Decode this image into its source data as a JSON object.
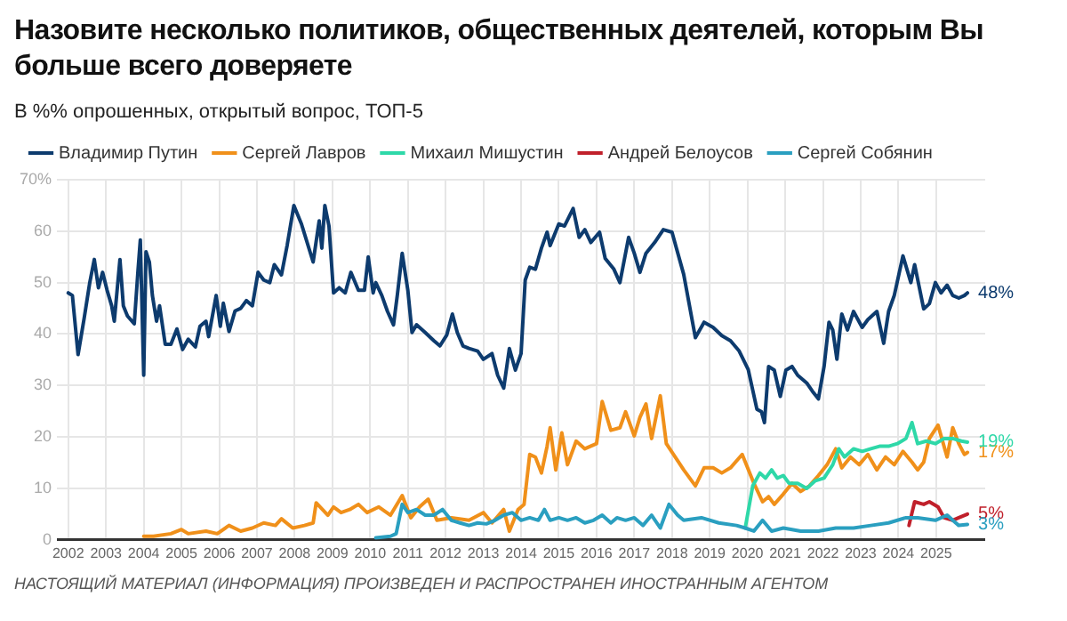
{
  "chart_data": {
    "type": "line",
    "title": "Назовите несколько политиков, общественных деятелей, которым Вы больше всего доверяете",
    "subtitle": "В %% опрошенных, открытый вопрос, ТОП-5",
    "annotations": [
      "НАСТОЯЩИЙ МАТЕРИАЛ (ИНФОРМАЦИЯ) ПРОИЗВЕДЕН И РАСПРОСТРАНЕН ИНОСТРАННЫМ АГЕНТОМ"
    ],
    "legend": "top left",
    "grid": true,
    "marker": "none",
    "line_style": "solid",
    "xlim": [
      2001.7,
      2026.3
    ],
    "xticks": [
      2002,
      2003,
      2004,
      2005,
      2006,
      2007,
      2008,
      2009,
      2010,
      2011,
      2012,
      2013,
      2014,
      2015,
      2016,
      2017,
      2018,
      2019,
      2020,
      2021,
      2022,
      2023,
      2024,
      2025
    ],
    "ylim": [
      0,
      70
    ],
    "yticks": [
      0,
      10,
      20,
      30,
      40,
      50,
      60,
      {
        "value": 70,
        "label": "70%"
      }
    ],
    "series": [
      {
        "name": "Владимир Путин",
        "color": "#0d3b6e",
        "x": [
          2002.0,
          2002.11,
          2002.26,
          2002.42,
          2002.57,
          2002.69,
          2002.8,
          2002.91,
          2003.03,
          2003.15,
          2003.22,
          2003.37,
          2003.46,
          2003.57,
          2003.75,
          2003.85,
          2003.91,
          2004.0,
          2004.06,
          2004.15,
          2004.23,
          2004.34,
          2004.42,
          2004.57,
          2004.72,
          2004.88,
          2005.03,
          2005.18,
          2005.37,
          2005.49,
          2005.65,
          2005.72,
          2005.92,
          2006.03,
          2006.11,
          2006.26,
          2006.42,
          2006.57,
          2006.72,
          2006.88,
          2007.03,
          2007.18,
          2007.34,
          2007.46,
          2007.65,
          2007.8,
          2007.98,
          2008.18,
          2008.49,
          2008.65,
          2008.72,
          2008.8,
          2008.91,
          2009.03,
          2009.18,
          2009.34,
          2009.49,
          2009.69,
          2009.85,
          2009.95,
          2010.08,
          2010.15,
          2010.31,
          2010.46,
          2010.62,
          2010.72,
          2010.85,
          2011.0,
          2011.11,
          2011.23,
          2011.46,
          2011.69,
          2011.85,
          2012.03,
          2012.18,
          2012.31,
          2012.46,
          2012.62,
          2012.85,
          2013.0,
          2013.23,
          2013.38,
          2013.54,
          2013.69,
          2013.85,
          2014.0,
          2014.11,
          2014.23,
          2014.38,
          2014.54,
          2014.69,
          2014.77,
          2015.0,
          2015.15,
          2015.38,
          2015.54,
          2015.69,
          2015.85,
          2016.08,
          2016.23,
          2016.46,
          2016.62,
          2016.85,
          2017.0,
          2017.15,
          2017.31,
          2017.54,
          2017.77,
          2018.0,
          2018.31,
          2018.62,
          2018.85,
          2019.09,
          2019.32,
          2019.55,
          2019.78,
          2020.02,
          2020.25,
          2020.37,
          2020.45,
          2020.56,
          2020.71,
          2020.87,
          2021.02,
          2021.18,
          2021.33,
          2021.57,
          2021.72,
          2021.88,
          2022.03,
          2022.16,
          2022.26,
          2022.37,
          2022.5,
          2022.65,
          2022.81,
          2023.04,
          2023.19,
          2023.43,
          2023.61,
          2023.74,
          2023.89,
          2024.12,
          2024.33,
          2024.43,
          2024.67,
          2024.82,
          2024.98,
          2025.13,
          2025.29,
          2025.44,
          2025.6,
          2025.75,
          2025.83
        ],
        "values": [
          48,
          47.5,
          36,
          43,
          50,
          54.5,
          49,
          52,
          48.5,
          45.5,
          42.5,
          54.5,
          45.5,
          43.5,
          42,
          52.5,
          58.3,
          32,
          56,
          54,
          47.5,
          42.5,
          45.5,
          38,
          38,
          41,
          37,
          39,
          37.5,
          41.5,
          42.5,
          39.5,
          47.5,
          41.5,
          46,
          40.5,
          44.5,
          45,
          46.5,
          45.5,
          52,
          50.5,
          50,
          53.5,
          51.5,
          57.2,
          65,
          61.4,
          54,
          62,
          56.7,
          65,
          61,
          48,
          49,
          48,
          52,
          48.5,
          48.5,
          55,
          48,
          50,
          47.5,
          44.4,
          41.8,
          47.5,
          55.7,
          48.5,
          40.3,
          41.8,
          40.3,
          38.7,
          37.7,
          39.8,
          43.9,
          40.3,
          37.7,
          37.2,
          36.7,
          35.1,
          36.2,
          32,
          29.5,
          37.2,
          33,
          36.2,
          50.5,
          53,
          52.6,
          56.7,
          59.8,
          57.2,
          61.4,
          61,
          64.4,
          58.8,
          60.3,
          57.8,
          59.8,
          54.7,
          52.6,
          50,
          58.8,
          55.7,
          52,
          55.7,
          57.8,
          60.3,
          59.8,
          51.6,
          39.3,
          42.3,
          41.3,
          39.7,
          38.7,
          36.7,
          33.1,
          25.4,
          24.9,
          22.8,
          33.7,
          33,
          27.9,
          33,
          33.7,
          32,
          30.5,
          28.9,
          27.4,
          33.7,
          42.3,
          40.8,
          35.1,
          43.9,
          40.8,
          44.4,
          41.3,
          42.8,
          44.4,
          38.2,
          44.4,
          47.5,
          55.2,
          50,
          53.5,
          44.9,
          45.9,
          50,
          48,
          49.5,
          47.5,
          47,
          47.5,
          48
        ],
        "value_labels": [
          null,
          null,
          null,
          null,
          null,
          null,
          null,
          null,
          null,
          null,
          null,
          null,
          null,
          null,
          null,
          null,
          null,
          null,
          null,
          null,
          null,
          null,
          null,
          null,
          null,
          null,
          null,
          null,
          null,
          null,
          null,
          null,
          null,
          null,
          null,
          null,
          null,
          null,
          null,
          null,
          null,
          null,
          null,
          null,
          null,
          null,
          null,
          null,
          null,
          null,
          null,
          null,
          null,
          null,
          null,
          null,
          null,
          null,
          null,
          null,
          null,
          null,
          null,
          null,
          null,
          null,
          null,
          null,
          null,
          null,
          null,
          null,
          null,
          null,
          null,
          null,
          null,
          null,
          null,
          null,
          null,
          null,
          null,
          null,
          null,
          null,
          null,
          null,
          null,
          null,
          null,
          null,
          null,
          null,
          null,
          null,
          null,
          null,
          null,
          null,
          null,
          null,
          null,
          null,
          null,
          null,
          null,
          null,
          null,
          null,
          null,
          null,
          null,
          null,
          null,
          null,
          null,
          null,
          null,
          null,
          null,
          null,
          null,
          null,
          null,
          null,
          null,
          null,
          null,
          null,
          null,
          null,
          null,
          null,
          null,
          null,
          null,
          null,
          null,
          null,
          null,
          null,
          null,
          null,
          null,
          null,
          null,
          null,
          null,
          null,
          null,
          null,
          null,
          "48%"
        ]
      },
      {
        "name": "Сергей Лавров",
        "color": "#f0901a",
        "x": [
          2004.0,
          2004.26,
          2004.72,
          2005.0,
          2005.18,
          2005.65,
          2005.95,
          2006.26,
          2006.57,
          2006.88,
          2007.18,
          2007.49,
          2007.65,
          2007.95,
          2008.26,
          2008.49,
          2008.57,
          2008.88,
          2009.03,
          2009.23,
          2009.46,
          2009.69,
          2009.92,
          2010.23,
          2010.54,
          2010.85,
          2011.08,
          2011.31,
          2011.54,
          2011.77,
          2012.15,
          2012.62,
          2013.0,
          2013.23,
          2013.54,
          2013.69,
          2013.92,
          2014.08,
          2014.23,
          2014.38,
          2014.54,
          2014.69,
          2014.77,
          2014.92,
          2015.08,
          2015.23,
          2015.46,
          2015.69,
          2016.0,
          2016.15,
          2016.38,
          2016.62,
          2016.77,
          2017.0,
          2017.15,
          2017.31,
          2017.46,
          2017.69,
          2017.85,
          2018.31,
          2018.62,
          2018.85,
          2019.09,
          2019.32,
          2019.55,
          2019.86,
          2020.17,
          2020.4,
          2020.56,
          2020.71,
          2020.95,
          2021.18,
          2021.41,
          2021.64,
          2021.88,
          2022.11,
          2022.34,
          2022.5,
          2022.73,
          2022.96,
          2023.19,
          2023.43,
          2023.66,
          2023.89,
          2024.12,
          2024.36,
          2024.51,
          2024.67,
          2024.82,
          2025.05,
          2025.29,
          2025.44,
          2025.6,
          2025.75,
          2025.83
        ],
        "values": [
          0.7,
          0.7,
          1.2,
          2,
          1.2,
          1.7,
          1.2,
          2.8,
          1.7,
          2.3,
          3.3,
          2.8,
          4.1,
          2.3,
          2.8,
          3.3,
          7.2,
          4.8,
          6.4,
          5.3,
          5.9,
          6.9,
          5.3,
          6.4,
          4.8,
          8.6,
          4.3,
          6.4,
          7.9,
          3.8,
          4.3,
          3.8,
          5.3,
          3.3,
          5.9,
          1.7,
          5.9,
          6.9,
          16.6,
          16.1,
          13,
          18.2,
          21.8,
          13.6,
          20.8,
          14.6,
          19.2,
          17.7,
          18.7,
          26.9,
          21.3,
          21.8,
          24.9,
          20.2,
          23.8,
          26.4,
          19.7,
          28,
          18.7,
          13.6,
          10.5,
          14,
          14,
          13,
          14,
          16.6,
          11,
          7.4,
          8.4,
          6.9,
          8.9,
          11,
          9.4,
          10.5,
          12.5,
          14.6,
          17.7,
          14,
          16.1,
          14.6,
          16.6,
          13.6,
          16.1,
          14.6,
          17.2,
          15.1,
          13.6,
          15.1,
          19.7,
          22.3,
          16.1,
          21.8,
          18.7,
          16.6,
          17
        ],
        "value_labels": [
          null,
          null,
          null,
          null,
          null,
          null,
          null,
          null,
          null,
          null,
          null,
          null,
          null,
          null,
          null,
          null,
          null,
          null,
          null,
          null,
          null,
          null,
          null,
          null,
          null,
          null,
          null,
          null,
          null,
          null,
          null,
          null,
          null,
          null,
          null,
          null,
          null,
          null,
          null,
          null,
          null,
          null,
          null,
          null,
          null,
          null,
          null,
          null,
          null,
          null,
          null,
          null,
          null,
          null,
          null,
          null,
          null,
          null,
          null,
          null,
          null,
          null,
          null,
          null,
          null,
          null,
          null,
          null,
          null,
          null,
          null,
          null,
          null,
          null,
          null,
          null,
          null,
          null,
          null,
          null,
          null,
          null,
          null,
          null,
          null,
          null,
          null,
          null,
          null,
          null,
          null,
          null,
          null,
          null,
          "17%"
        ]
      },
      {
        "name": "Михаил Мишустин",
        "color": "#2ed8a8",
        "x": [
          2019.94,
          2020.14,
          2020.33,
          2020.48,
          2020.64,
          2020.79,
          2020.95,
          2021.1,
          2021.33,
          2021.57,
          2021.8,
          2022.03,
          2022.26,
          2022.42,
          2022.57,
          2022.81,
          2023.04,
          2023.27,
          2023.5,
          2023.74,
          2023.97,
          2024.2,
          2024.36,
          2024.51,
          2024.74,
          2024.98,
          2025.21,
          2025.44,
          2025.67,
          2025.83
        ],
        "values": [
          2.3,
          10.5,
          13,
          12,
          13.6,
          12,
          12.5,
          11,
          11,
          10,
          11.5,
          12,
          14.6,
          17.7,
          16.1,
          17.7,
          17.2,
          17.7,
          18.2,
          18.2,
          18.7,
          19.7,
          22.8,
          18.7,
          19.2,
          18.7,
          19.7,
          19.7,
          19.2,
          19
        ],
        "value_labels": [
          null,
          null,
          null,
          null,
          null,
          null,
          null,
          null,
          null,
          null,
          null,
          null,
          null,
          null,
          null,
          null,
          null,
          null,
          null,
          null,
          null,
          null,
          null,
          null,
          null,
          null,
          null,
          null,
          null,
          "19%"
        ]
      },
      {
        "name": "Андрей Белоусов",
        "color": "#c0202b",
        "x": [
          2024.28,
          2024.43,
          2024.67,
          2024.82,
          2025.05,
          2025.21,
          2025.44,
          2025.6,
          2025.83
        ],
        "values": [
          2.8,
          7.4,
          6.9,
          7.4,
          6.4,
          4.3,
          3.8,
          4.3,
          5
        ],
        "value_labels": [
          null,
          null,
          null,
          null,
          null,
          null,
          null,
          null,
          "5%"
        ]
      },
      {
        "name": "Сергей Собянин",
        "color": "#2a9fc0",
        "x": [
          2010.15,
          2010.54,
          2010.69,
          2010.85,
          2011.0,
          2011.23,
          2011.46,
          2011.69,
          2011.92,
          2012.15,
          2012.38,
          2012.62,
          2012.85,
          2013.08,
          2013.31,
          2013.54,
          2013.77,
          2014.0,
          2014.23,
          2014.46,
          2014.62,
          2014.77,
          2015.0,
          2015.23,
          2015.46,
          2015.69,
          2015.92,
          2016.15,
          2016.38,
          2016.54,
          2016.77,
          2017.0,
          2017.23,
          2017.46,
          2017.69,
          2017.92,
          2018.15,
          2018.31,
          2018.78,
          2019.24,
          2019.71,
          2019.94,
          2020.17,
          2020.4,
          2020.64,
          2020.95,
          2021.41,
          2021.88,
          2022.34,
          2022.81,
          2023.27,
          2023.74,
          2024.2,
          2024.51,
          2024.98,
          2025.29,
          2025.44,
          2025.6,
          2025.83
        ],
        "values": [
          0.4,
          0.7,
          1.2,
          6.9,
          5.3,
          5.9,
          4.8,
          4.8,
          5.9,
          3.8,
          3.3,
          2.8,
          3.3,
          3.1,
          3.8,
          4.8,
          5.3,
          3.8,
          4.3,
          3.8,
          5.9,
          3.8,
          4.3,
          3.8,
          4.3,
          3.3,
          3.8,
          4.8,
          3.3,
          4.3,
          3.8,
          4.3,
          2.8,
          4.8,
          2.3,
          6.9,
          4.8,
          3.8,
          4.3,
          3.3,
          2.8,
          2.3,
          1.7,
          3.8,
          1.7,
          2.3,
          1.7,
          1.7,
          2.3,
          2.3,
          2.8,
          3.3,
          4.3,
          4.3,
          3.8,
          4.8,
          3.8,
          2.8,
          3
        ],
        "value_labels": [
          null,
          null,
          null,
          null,
          null,
          null,
          null,
          null,
          null,
          null,
          null,
          null,
          null,
          null,
          null,
          null,
          null,
          null,
          null,
          null,
          null,
          null,
          null,
          null,
          null,
          null,
          null,
          null,
          null,
          null,
          null,
          null,
          null,
          null,
          null,
          null,
          null,
          null,
          null,
          null,
          null,
          null,
          null,
          null,
          null,
          null,
          null,
          null,
          null,
          null,
          null,
          null,
          null,
          null,
          null,
          null,
          null,
          null,
          "3%"
        ]
      }
    ]
  }
}
